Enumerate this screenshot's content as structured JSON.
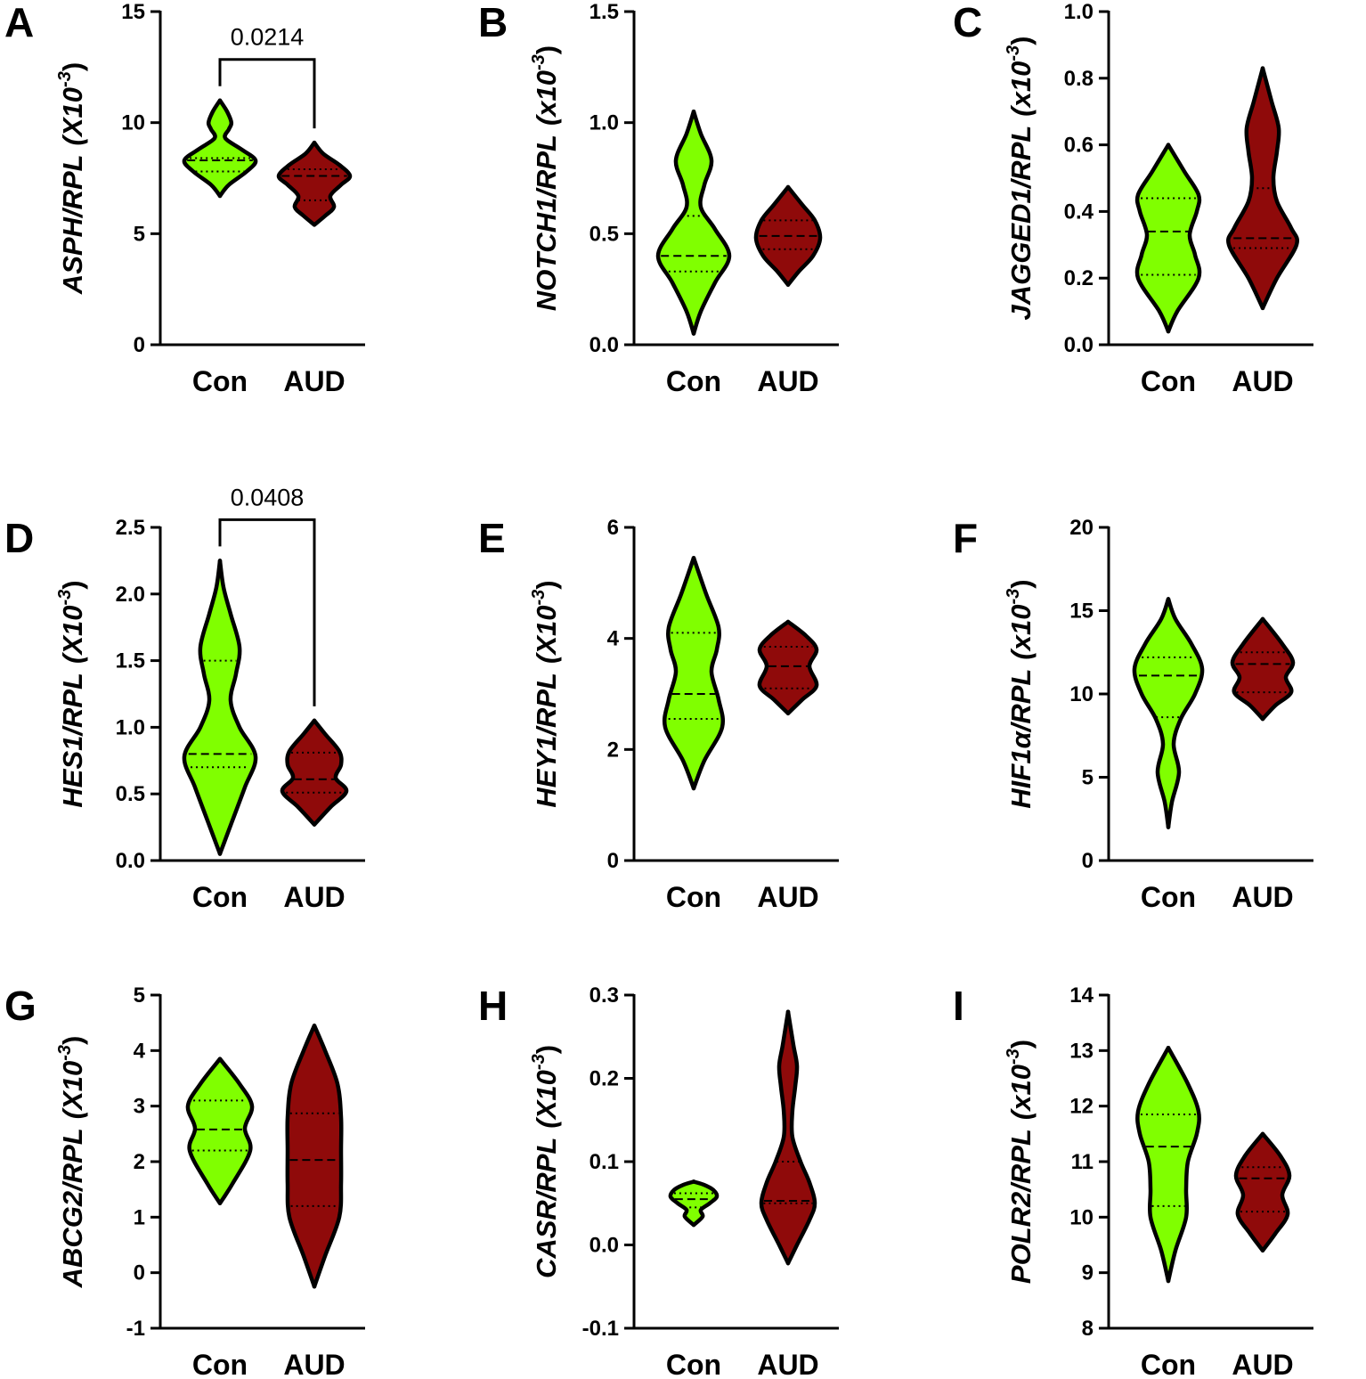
{
  "chart_data": [
    {
      "type": "violin",
      "panel": "A",
      "ylabel": "ASPH/RPL",
      "ylabel_unit": "(X10",
      "ylabel_exp": "-3",
      "ylabel_close": ")",
      "ylim": [
        0,
        15
      ],
      "yticks": [
        0,
        5,
        10,
        15
      ],
      "annotation": "0.0214",
      "series": [
        {
          "name": "Con",
          "color": "#80ff00",
          "y": [
            6.7,
            7.2,
            7.8,
            8.3,
            8.8,
            9.3,
            9.7,
            10.0,
            10.5,
            11.0
          ],
          "density": [
            0,
            0.25,
            0.75,
            1.0,
            0.6,
            0.15,
            0.25,
            0.32,
            0.2,
            0
          ],
          "median": 8.3,
          "q1": 7.8,
          "q3": 8.4
        },
        {
          "name": "AUD",
          "color": "#8f0a0a",
          "y": [
            5.4,
            5.8,
            6.2,
            6.7,
            7.2,
            7.6,
            8.1,
            8.6,
            9.1
          ],
          "density": [
            0,
            0.3,
            0.55,
            0.45,
            0.75,
            1.0,
            0.7,
            0.25,
            0
          ],
          "median": 7.6,
          "q1": 6.5,
          "q3": 7.9
        }
      ]
    },
    {
      "type": "violin",
      "panel": "B",
      "ylabel": "NOTCH1/RPL",
      "ylabel_unit": "(x10",
      "ylabel_exp": "-3",
      "ylabel_close": ")",
      "ylim": [
        0,
        1.5
      ],
      "yticks": [
        {
          "value": 0,
          "label": "0.0"
        },
        0.5,
        {
          "value": 1,
          "label": "1.0"
        },
        1.5
      ],
      "series": [
        {
          "name": "Con",
          "color": "#80ff00",
          "y": [
            0.05,
            0.15,
            0.28,
            0.4,
            0.52,
            0.62,
            0.72,
            0.83,
            0.95,
            1.05
          ],
          "density": [
            0,
            0.2,
            0.6,
            1.0,
            0.6,
            0.2,
            0.3,
            0.5,
            0.2,
            0
          ],
          "median": 0.4,
          "q1": 0.33,
          "q3": 0.58
        },
        {
          "name": "AUD",
          "color": "#8f0a0a",
          "y": [
            0.27,
            0.33,
            0.4,
            0.48,
            0.56,
            0.63,
            0.71
          ],
          "density": [
            0,
            0.3,
            0.7,
            0.9,
            0.75,
            0.4,
            0
          ],
          "median": 0.49,
          "q1": 0.43,
          "q3": 0.56
        }
      ]
    },
    {
      "type": "violin",
      "panel": "C",
      "ylabel": "JAGGED1/RPL",
      "ylabel_unit": "(x10",
      "ylabel_exp": "-3",
      "ylabel_close": ")",
      "ylim": [
        0,
        1
      ],
      "yticks": [
        {
          "value": 0,
          "label": "0.0"
        },
        0.2,
        0.4,
        0.6,
        0.8,
        {
          "value": 1,
          "label": "1.0"
        }
      ],
      "series": [
        {
          "name": "Con",
          "color": "#80ff00",
          "y": [
            0.04,
            0.1,
            0.2,
            0.27,
            0.33,
            0.4,
            0.45,
            0.52,
            0.6
          ],
          "density": [
            0,
            0.25,
            0.85,
            0.75,
            0.6,
            0.8,
            0.85,
            0.45,
            0
          ],
          "median": 0.34,
          "q1": 0.21,
          "q3": 0.44
        },
        {
          "name": "AUD",
          "color": "#8f0a0a",
          "y": [
            0.11,
            0.2,
            0.3,
            0.35,
            0.43,
            0.5,
            0.58,
            0.65,
            0.73,
            0.83
          ],
          "density": [
            0,
            0.4,
            0.95,
            0.8,
            0.4,
            0.3,
            0.4,
            0.45,
            0.25,
            0
          ],
          "median": 0.32,
          "q1": 0.29,
          "q3": 0.47
        }
      ]
    },
    {
      "type": "violin",
      "panel": "D",
      "ylabel": "HES1/RPL",
      "ylabel_unit": "(X10",
      "ylabel_exp": "-3",
      "ylabel_close": ")",
      "ylim": [
        0,
        2.5
      ],
      "yticks": [
        {
          "value": 0,
          "label": "0.0"
        },
        0.5,
        {
          "value": 1,
          "label": "1.0"
        },
        1.5,
        {
          "value": 2,
          "label": "2.0"
        },
        2.5
      ],
      "annotation": "0.0408",
      "series": [
        {
          "name": "Con",
          "color": "#80ff00",
          "y": [
            0.05,
            0.3,
            0.55,
            0.78,
            1.0,
            1.2,
            1.4,
            1.6,
            1.85,
            2.05,
            2.25
          ],
          "density": [
            0,
            0.35,
            0.7,
            1.0,
            0.55,
            0.3,
            0.45,
            0.55,
            0.3,
            0.1,
            0
          ],
          "median": 0.8,
          "q1": 0.7,
          "q3": 1.5
        },
        {
          "name": "AUD",
          "color": "#8f0a0a",
          "y": [
            0.27,
            0.4,
            0.52,
            0.62,
            0.72,
            0.82,
            0.95,
            1.05
          ],
          "density": [
            0,
            0.45,
            0.9,
            0.6,
            0.75,
            0.7,
            0.3,
            0
          ],
          "median": 0.61,
          "q1": 0.51,
          "q3": 0.81
        }
      ]
    },
    {
      "type": "violin",
      "panel": "E",
      "ylabel": "HEY1/RPL",
      "ylabel_unit": "(X10",
      "ylabel_exp": "-3",
      "ylabel_close": ")",
      "ylim": [
        0,
        6
      ],
      "yticks": [
        0,
        2,
        4,
        6
      ],
      "series": [
        {
          "name": "Con",
          "color": "#80ff00",
          "y": [
            1.3,
            1.8,
            2.4,
            2.9,
            3.4,
            3.8,
            4.2,
            4.8,
            5.45
          ],
          "density": [
            0,
            0.3,
            0.8,
            0.7,
            0.5,
            0.65,
            0.7,
            0.35,
            0
          ],
          "median": 3.0,
          "q1": 2.55,
          "q3": 4.1
        },
        {
          "name": "AUD",
          "color": "#8f0a0a",
          "y": [
            2.65,
            2.9,
            3.15,
            3.5,
            3.8,
            4.05,
            4.3
          ],
          "density": [
            0,
            0.4,
            0.8,
            0.6,
            0.8,
            0.5,
            0
          ],
          "median": 3.5,
          "q1": 3.1,
          "q3": 3.85
        }
      ]
    },
    {
      "type": "violin",
      "panel": "F",
      "ylabel": "HIF1α/RPL",
      "ylabel_unit": "(x10",
      "ylabel_exp": "-3",
      "ylabel_close": ")",
      "ylim": [
        0,
        20
      ],
      "yticks": [
        0,
        5,
        10,
        15,
        20
      ],
      "series": [
        {
          "name": "Con",
          "color": "#80ff00",
          "y": [
            2,
            3.5,
            5.3,
            7.0,
            8.5,
            10.0,
            11.5,
            13,
            14.5,
            15.7
          ],
          "density": [
            0,
            0.1,
            0.3,
            0.15,
            0.35,
            0.75,
            0.95,
            0.65,
            0.2,
            0
          ],
          "median": 11.1,
          "q1": 8.6,
          "q3": 12.2
        },
        {
          "name": "AUD",
          "color": "#8f0a0a",
          "y": [
            8.5,
            9.3,
            10.1,
            11,
            11.9,
            13,
            14.5
          ],
          "density": [
            0,
            0.35,
            0.8,
            0.65,
            0.85,
            0.55,
            0
          ],
          "median": 11.8,
          "q1": 10.1,
          "q3": 12.5
        }
      ]
    },
    {
      "type": "violin",
      "panel": "G",
      "ylabel": "ABCG2/RPL",
      "ylabel_unit": "(X10",
      "ylabel_exp": "-3",
      "ylabel_close": ")",
      "ylim": [
        -1,
        5
      ],
      "yticks": [
        -1,
        0,
        1,
        2,
        3,
        4,
        5
      ],
      "series": [
        {
          "name": "Con",
          "color": "#80ff00",
          "y": [
            1.25,
            1.6,
            2.2,
            2.6,
            3.0,
            3.4,
            3.85
          ],
          "density": [
            0,
            0.35,
            0.85,
            0.7,
            0.9,
            0.55,
            0
          ],
          "median": 2.58,
          "q1": 2.2,
          "q3": 3.1
        },
        {
          "name": "AUD",
          "color": "#8f0a0a",
          "y": [
            -0.25,
            0.3,
            1.0,
            1.6,
            2.2,
            2.8,
            3.4,
            4.0,
            4.45
          ],
          "density": [
            0,
            0.3,
            0.7,
            0.75,
            0.75,
            0.75,
            0.65,
            0.3,
            0
          ],
          "median": 2.03,
          "q1": 1.2,
          "q3": 2.87
        }
      ]
    },
    {
      "type": "violin",
      "panel": "H",
      "ylabel": "CASR/RPL",
      "ylabel_unit": "(X10",
      "ylabel_exp": "-3",
      "ylabel_close": ")",
      "ylim": [
        -0.1,
        0.3
      ],
      "yticks": [
        -0.1,
        {
          "value": 0,
          "label": "0.0"
        },
        0.1,
        0.2,
        0.3
      ],
      "series": [
        {
          "name": "Con",
          "color": "#80ff00",
          "y": [
            0.024,
            0.034,
            0.042,
            0.05,
            0.058,
            0.066,
            0.072,
            0.076
          ],
          "density": [
            0,
            0.25,
            0.2,
            0.45,
            0.65,
            0.55,
            0.3,
            0
          ],
          "median": 0.055,
          "q1": 0.045,
          "q3": 0.062
        },
        {
          "name": "AUD",
          "color": "#8f0a0a",
          "y": [
            -0.022,
            0.0,
            0.03,
            0.05,
            0.075,
            0.1,
            0.13,
            0.16,
            0.19,
            0.215,
            0.24,
            0.28
          ],
          "density": [
            0,
            0.25,
            0.6,
            0.75,
            0.6,
            0.35,
            0.12,
            0.12,
            0.2,
            0.25,
            0.15,
            0
          ],
          "median": 0.053,
          "q1": 0.05,
          "q3": 0.1
        }
      ]
    },
    {
      "type": "violin",
      "panel": "I",
      "ylabel": "POLR2/RPL",
      "ylabel_unit": "(x10",
      "ylabel_exp": "-3",
      "ylabel_close": ")",
      "ylim": [
        8,
        14
      ],
      "yticks": [
        8,
        9,
        10,
        11,
        12,
        13,
        14
      ],
      "series": [
        {
          "name": "Con",
          "color": "#80ff00",
          "y": [
            8.85,
            9.4,
            10.0,
            10.5,
            11.0,
            11.5,
            11.9,
            12.4,
            13.05
          ],
          "density": [
            0,
            0.2,
            0.5,
            0.5,
            0.55,
            0.8,
            0.85,
            0.55,
            0
          ],
          "median": 11.27,
          "q1": 10.2,
          "q3": 11.85
        },
        {
          "name": "AUD",
          "color": "#8f0a0a",
          "y": [
            9.4,
            9.7,
            10.05,
            10.4,
            10.75,
            11.1,
            11.5
          ],
          "density": [
            0,
            0.35,
            0.7,
            0.55,
            0.75,
            0.5,
            0
          ],
          "median": 10.7,
          "q1": 10.1,
          "q3": 10.9
        }
      ]
    }
  ]
}
